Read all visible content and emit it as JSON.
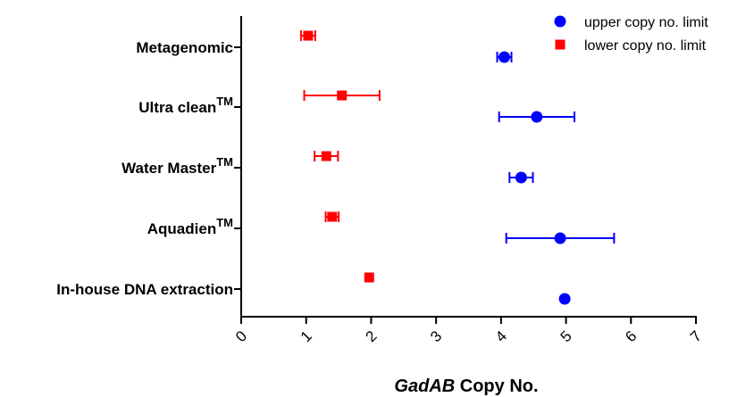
{
  "chart_data": {
    "type": "scatter",
    "title": "",
    "xlabel_italic": "GadAB",
    "xlabel_rest": " Copy No.",
    "xlim": [
      0,
      7
    ],
    "x_ticks": [
      "0",
      "1",
      "2",
      "3",
      "4",
      "5",
      "6",
      "7"
    ],
    "grid": false,
    "legend_position": "top-right",
    "categories": [
      {
        "name": "Metagenomic",
        "superscript": ""
      },
      {
        "name": "Ultra clean",
        "superscript": "TM"
      },
      {
        "name": "Water Master",
        "superscript": "TM"
      },
      {
        "name": "Aquadien",
        "superscript": "TM"
      },
      {
        "name": "In-house DNA extraction",
        "superscript": ""
      }
    ],
    "series": [
      {
        "name": "upper copy no. limit",
        "marker": "circle",
        "color": "#0000ff",
        "values": [
          4.05,
          4.55,
          4.31,
          4.91,
          4.98
        ],
        "errors": [
          0.11,
          0.58,
          0.18,
          0.83,
          0
        ]
      },
      {
        "name": "lower copy no. limit",
        "marker": "square",
        "color": "#ff0000",
        "values": [
          1.03,
          1.55,
          1.31,
          1.4,
          1.97
        ],
        "errors": [
          0.11,
          0.58,
          0.18,
          0.1,
          0
        ]
      }
    ]
  }
}
